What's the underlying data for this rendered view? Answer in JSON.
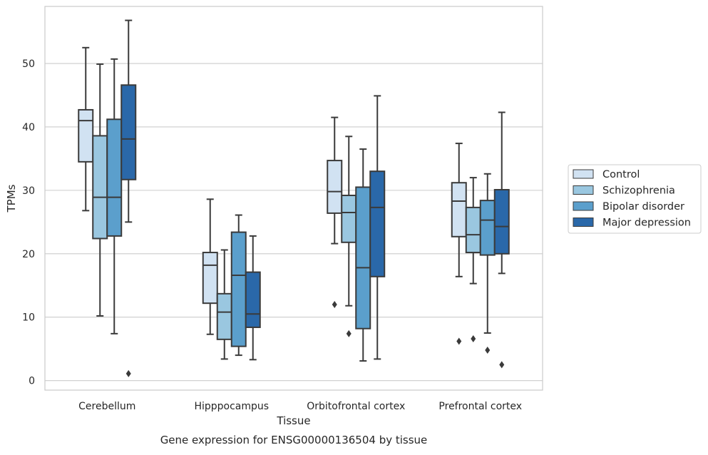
{
  "chart_data": {
    "type": "boxplot",
    "xlabel": "Tissue",
    "ylabel": "TPMs",
    "caption": "Gene expression for ENSG00000136504 by tissue",
    "ylim": [
      -1.5,
      59
    ],
    "yticks": [
      0,
      10,
      20,
      30,
      40,
      50
    ],
    "grid": "horizontal",
    "legend_position": "right",
    "categories": [
      "Cerebellum",
      "Hipppocampus",
      "Orbitofrontal cortex",
      "Prefrontal cortex"
    ],
    "series": [
      {
        "name": "Control",
        "color": "#d1e2f2",
        "boxes": [
          {
            "whisker_low": 26.8,
            "q1": 34.5,
            "median": 41.0,
            "q3": 42.7,
            "whisker_high": 52.5,
            "outliers": []
          },
          {
            "whisker_low": 7.3,
            "q1": 12.2,
            "median": 18.2,
            "q3": 20.2,
            "whisker_high": 28.6,
            "outliers": []
          },
          {
            "whisker_low": 21.6,
            "q1": 26.4,
            "median": 29.8,
            "q3": 34.7,
            "whisker_high": 41.5,
            "outliers": [
              12.0
            ]
          },
          {
            "whisker_low": 16.4,
            "q1": 22.7,
            "median": 28.3,
            "q3": 31.2,
            "whisker_high": 37.4,
            "outliers": [
              6.2
            ]
          }
        ]
      },
      {
        "name": "Schizophrenia",
        "color": "#9ac7e0",
        "boxes": [
          {
            "whisker_low": 10.2,
            "q1": 22.4,
            "median": 28.9,
            "q3": 38.6,
            "whisker_high": 49.9,
            "outliers": []
          },
          {
            "whisker_low": 3.4,
            "q1": 6.5,
            "median": 10.8,
            "q3": 13.7,
            "whisker_high": 20.6,
            "outliers": []
          },
          {
            "whisker_low": 11.8,
            "q1": 21.8,
            "median": 26.5,
            "q3": 29.2,
            "whisker_high": 38.5,
            "outliers": [
              7.4
            ]
          },
          {
            "whisker_low": 15.3,
            "q1": 20.2,
            "median": 23.0,
            "q3": 27.3,
            "whisker_high": 32.0,
            "outliers": [
              6.6
            ]
          }
        ]
      },
      {
        "name": "Bipolar disorder",
        "color": "#5b9fcc",
        "boxes": [
          {
            "whisker_low": 7.4,
            "q1": 22.8,
            "median": 28.9,
            "q3": 41.2,
            "whisker_high": 50.7,
            "outliers": []
          },
          {
            "whisker_low": 4.0,
            "q1": 5.4,
            "median": 16.6,
            "q3": 23.4,
            "whisker_high": 26.1,
            "outliers": []
          },
          {
            "whisker_low": 3.1,
            "q1": 8.2,
            "median": 17.8,
            "q3": 30.5,
            "whisker_high": 36.5,
            "outliers": []
          },
          {
            "whisker_low": 7.5,
            "q1": 19.8,
            "median": 25.3,
            "q3": 28.4,
            "whisker_high": 32.6,
            "outliers": [
              4.8
            ]
          }
        ]
      },
      {
        "name": "Major depression",
        "color": "#2a68a9",
        "boxes": [
          {
            "whisker_low": 25.0,
            "q1": 31.7,
            "median": 38.1,
            "q3": 46.6,
            "whisker_high": 56.8,
            "outliers": [
              1.1
            ]
          },
          {
            "whisker_low": 3.3,
            "q1": 8.4,
            "median": 10.5,
            "q3": 17.1,
            "whisker_high": 22.8,
            "outliers": []
          },
          {
            "whisker_low": 3.4,
            "q1": 16.4,
            "median": 27.3,
            "q3": 33.0,
            "whisker_high": 44.9,
            "outliers": []
          },
          {
            "whisker_low": 16.9,
            "q1": 20.0,
            "median": 24.3,
            "q3": 30.1,
            "whisker_high": 42.3,
            "outliers": [
              2.5
            ]
          }
        ]
      }
    ]
  }
}
